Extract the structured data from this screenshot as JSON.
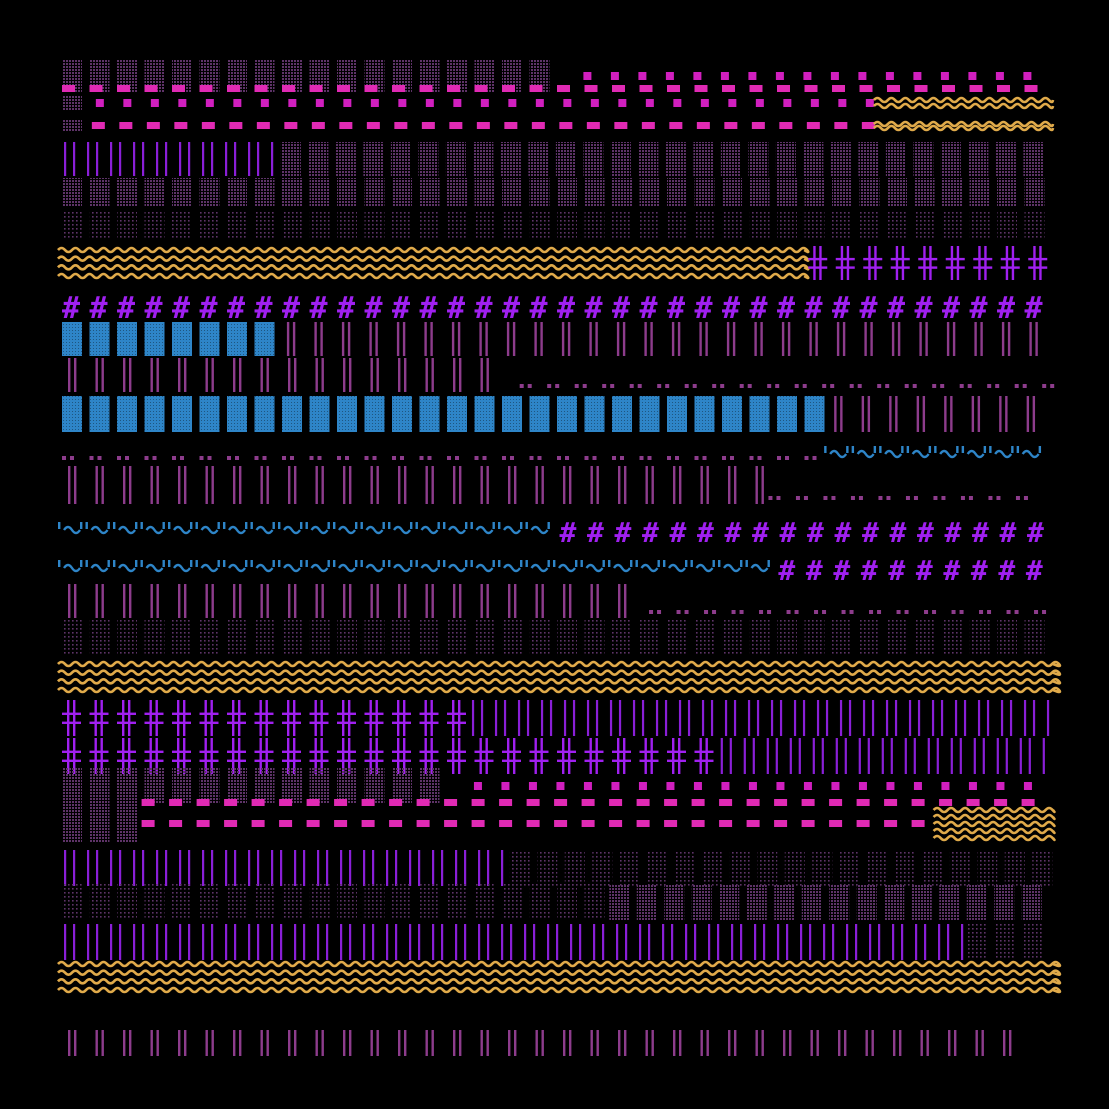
{
  "canvas": {
    "background": "#000000",
    "colors": {
      "magenta": "#d11fbf",
      "pink": "#e02ab4",
      "violet": "#8a1fd8",
      "mauve": "#8d3c8c",
      "plum": "#5e3368",
      "blue": "#2e85c8",
      "gold": "#e0aa4a",
      "purple_bright": "#a020f0"
    }
  },
  "pattern_rows": [
    {
      "segments": [
        {
          "pattern": "block-dotted",
          "color": "plum",
          "end": 0.52
        },
        {
          "pattern": "dashes-small",
          "color": "magenta",
          "end": 1.0
        }
      ]
    },
    {
      "segments": [
        {
          "pattern": "dashes-pink",
          "color": "pink",
          "end": 1.0
        }
      ]
    },
    {
      "segments": [
        {
          "pattern": "block-dotted",
          "color": "plum",
          "end": 0.03
        },
        {
          "pattern": "dashes-small",
          "color": "magenta",
          "end": 0.82
        },
        {
          "pattern": "waves",
          "color": "gold",
          "end": 1.0
        }
      ]
    },
    {
      "segments": [
        {
          "pattern": "block-dotted",
          "color": "plum",
          "end": 0.03
        },
        {
          "pattern": "dashes-pink",
          "color": "pink",
          "end": 0.82
        },
        {
          "pattern": "waves",
          "color": "gold",
          "end": 1.0
        }
      ]
    },
    {
      "segments": [
        {
          "pattern": "bars-thin",
          "color": "violet",
          "end": 0.22
        },
        {
          "pattern": "block-dotted",
          "color": "plum",
          "end": 1.0
        }
      ]
    },
    {
      "segments": [
        {
          "pattern": "block-dotted",
          "color": "plum",
          "end": 1.0
        }
      ]
    },
    {
      "segments": [
        {
          "pattern": "block-sparse",
          "color": "plum",
          "end": 1.0
        }
      ]
    },
    {
      "segments": [
        {
          "pattern": "waves",
          "color": "gold",
          "end": 0.75
        },
        {
          "pattern": "cross-double",
          "color": "purple_bright",
          "end": 1.0
        }
      ]
    },
    {
      "segments": [
        {
          "pattern": "hash",
          "color": "purple_bright",
          "end": 1.0
        }
      ]
    },
    {
      "segments": [
        {
          "pattern": "block-solid",
          "color": "blue",
          "end": 0.22
        },
        {
          "pattern": "bars-double",
          "color": "mauve",
          "end": 1.0
        }
      ]
    },
    {
      "segments": [
        {
          "pattern": "bars-double",
          "color": "mauve",
          "end": 0.46
        },
        {
          "pattern": "dot-pairs",
          "color": "mauve",
          "end": 1.0
        }
      ]
    },
    {
      "segments": [
        {
          "pattern": "block-solid",
          "color": "blue",
          "end": 0.77
        },
        {
          "pattern": "bars-double",
          "color": "mauve",
          "end": 1.0
        }
      ]
    },
    {
      "segments": [
        {
          "pattern": "dot-pairs",
          "color": "mauve",
          "end": 0.77
        },
        {
          "pattern": "tilde-quote",
          "color": "blue",
          "end": 1.0
        }
      ]
    },
    {
      "segments": [
        {
          "pattern": "bars-double",
          "color": "mauve",
          "end": 0.71
        },
        {
          "pattern": "dot-pairs",
          "color": "mauve",
          "end": 1.0
        }
      ]
    },
    {
      "segments": [
        {
          "pattern": "tilde-quote",
          "color": "blue",
          "end": 0.5
        },
        {
          "pattern": "hash",
          "color": "purple_bright",
          "end": 1.0
        }
      ]
    },
    {
      "segments": [
        {
          "pattern": "tilde-quote",
          "color": "blue",
          "end": 0.72
        },
        {
          "pattern": "hash",
          "color": "purple_bright",
          "end": 1.0
        }
      ]
    },
    {
      "segments": [
        {
          "pattern": "bars-double",
          "color": "mauve",
          "end": 0.59
        },
        {
          "pattern": "dot-pairs",
          "color": "mauve",
          "end": 1.0
        }
      ]
    },
    {
      "segments": [
        {
          "pattern": "block-sparse",
          "color": "plum",
          "end": 1.0
        }
      ]
    },
    {
      "segments": [
        {
          "pattern": "waves",
          "color": "gold",
          "end": 1.0
        }
      ]
    },
    {
      "segments": [
        {
          "pattern": "cross-double",
          "color": "purple_bright",
          "end": 0.41
        },
        {
          "pattern": "bars-thin",
          "color": "violet",
          "end": 1.0
        }
      ]
    },
    {
      "segments": [
        {
          "pattern": "cross-double",
          "color": "purple_bright",
          "end": 0.66
        },
        {
          "pattern": "bars-thin",
          "color": "violet",
          "end": 1.0
        }
      ]
    },
    {
      "segments": [
        {
          "pattern": "block-dotted",
          "color": "plum",
          "end": 0.41
        },
        {
          "pattern": "dashes-small",
          "color": "magenta",
          "end": 1.0
        }
      ]
    },
    {
      "segments": [
        {
          "pattern": "block-dotted",
          "color": "plum",
          "end": 0.08
        },
        {
          "pattern": "dashes-pink",
          "color": "pink",
          "end": 1.0
        }
      ]
    },
    {
      "segments": [
        {
          "pattern": "block-dotted",
          "color": "plum",
          "end": 0.08
        },
        {
          "pattern": "dashes-pink",
          "color": "pink",
          "end": 0.88
        },
        {
          "pattern": "waves",
          "color": "gold",
          "end": 1.0
        }
      ]
    },
    {
      "segments": [
        {
          "pattern": "bars-thin",
          "color": "violet",
          "end": 0.45
        },
        {
          "pattern": "block-sparse",
          "color": "plum",
          "end": 1.0
        }
      ]
    },
    {
      "segments": [
        {
          "pattern": "block-sparse",
          "color": "plum",
          "end": 0.55
        },
        {
          "pattern": "block-dotted",
          "color": "plum",
          "end": 1.0
        }
      ]
    },
    {
      "segments": [
        {
          "pattern": "bars-thin",
          "color": "violet",
          "end": 0.91
        },
        {
          "pattern": "block-sparse",
          "color": "plum",
          "end": 1.0
        }
      ]
    },
    {
      "segments": [
        {
          "pattern": "waves",
          "color": "gold",
          "end": 1.0
        }
      ]
    },
    {
      "segments": [
        {
          "pattern": "none",
          "color": "mauve",
          "end": 1.0
        }
      ]
    },
    {
      "segments": [
        {
          "pattern": "bars-double",
          "color": "mauve",
          "end": 0.96
        }
      ]
    }
  ]
}
